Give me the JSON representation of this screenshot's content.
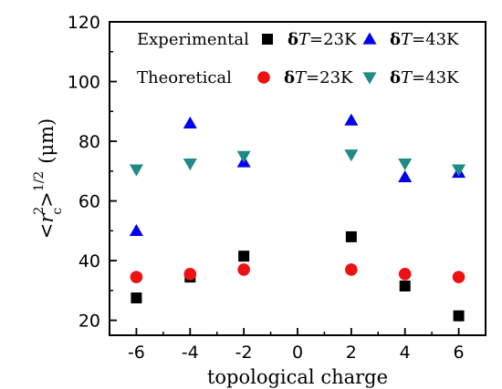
{
  "chart_data": {
    "type": "scatter",
    "xlabel": "topological charge",
    "ylabel": {
      "base": "<r",
      "sup": "2",
      "sub": "c",
      "tail": ">",
      "tail_sup": "1/2",
      "unit": "(μm)"
    },
    "xlim": [
      -7,
      7
    ],
    "ylim": [
      15,
      120
    ],
    "xticks": [
      -6,
      -4,
      -2,
      0,
      2,
      4,
      6
    ],
    "yticks": [
      20,
      40,
      60,
      80,
      100,
      120
    ],
    "grid": false,
    "legend_placement": "top",
    "legend_groups": [
      {
        "group": "Experimental"
      },
      {
        "group": "Theoretical"
      }
    ],
    "series": [
      {
        "name_prefix": "δ",
        "name_var": "T",
        "name_suffix": "=23K",
        "group": "Experimental",
        "marker": "square",
        "color": "#000000",
        "points": [
          {
            "x": -6,
            "y": 27.5
          },
          {
            "x": -4,
            "y": 34.5
          },
          {
            "x": -2,
            "y": 41.5
          },
          {
            "x": 2,
            "y": 48
          },
          {
            "x": 4,
            "y": 31.5
          },
          {
            "x": 6,
            "y": 21.5
          }
        ]
      },
      {
        "name_prefix": "δ",
        "name_var": "T",
        "name_suffix": "=43K",
        "group": "Experimental",
        "marker": "triangle-up",
        "color": "#0000ee",
        "points": [
          {
            "x": -6,
            "y": 50
          },
          {
            "x": -4,
            "y": 86
          },
          {
            "x": -2,
            "y": 73
          },
          {
            "x": 2,
            "y": 87
          },
          {
            "x": 4,
            "y": 68
          },
          {
            "x": 6,
            "y": 69.5
          }
        ]
      },
      {
        "name_prefix": "δ",
        "name_var": "T",
        "name_suffix": "=23K",
        "group": "Theoretical",
        "marker": "circle",
        "color": "#ee1111",
        "points": [
          {
            "x": -6,
            "y": 34.5
          },
          {
            "x": -4,
            "y": 35.5
          },
          {
            "x": -2,
            "y": 37
          },
          {
            "x": 2,
            "y": 37
          },
          {
            "x": 4,
            "y": 35.5
          },
          {
            "x": 6,
            "y": 34.5
          }
        ]
      },
      {
        "name_prefix": "δ",
        "name_var": "T",
        "name_suffix": "=43K",
        "group": "Theoretical",
        "marker": "triangle-down",
        "color": "#1f8a86",
        "points": [
          {
            "x": -6,
            "y": 70.5
          },
          {
            "x": -4,
            "y": 72.5
          },
          {
            "x": -2,
            "y": 75
          },
          {
            "x": 2,
            "y": 75.5
          },
          {
            "x": 4,
            "y": 72.5
          },
          {
            "x": 6,
            "y": 70.5
          }
        ]
      }
    ]
  }
}
